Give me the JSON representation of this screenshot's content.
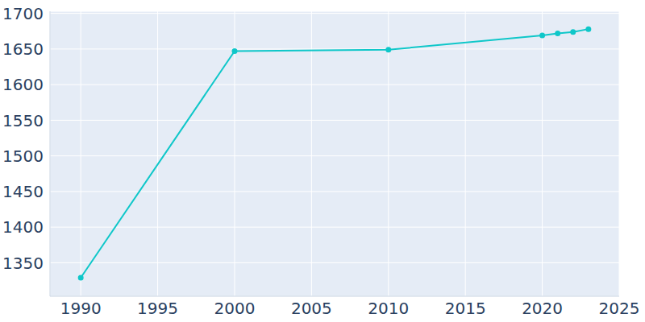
{
  "chart_data": {
    "type": "line",
    "x": [
      1990,
      2000,
      2010,
      2020,
      2021,
      2022,
      2023
    ],
    "values": [
      1329,
      1647,
      1649,
      1669,
      1672,
      1674,
      1678
    ],
    "color": "#0fc7c9",
    "xlim": [
      1988,
      2025
    ],
    "xticks": [
      1990,
      1995,
      2000,
      2005,
      2010,
      2015,
      2020,
      2025
    ],
    "ylim": [
      1303,
      1703
    ],
    "yticks": [
      1350,
      1400,
      1450,
      1500,
      1550,
      1600,
      1650,
      1700
    ],
    "grid": true,
    "marker": "circle"
  }
}
